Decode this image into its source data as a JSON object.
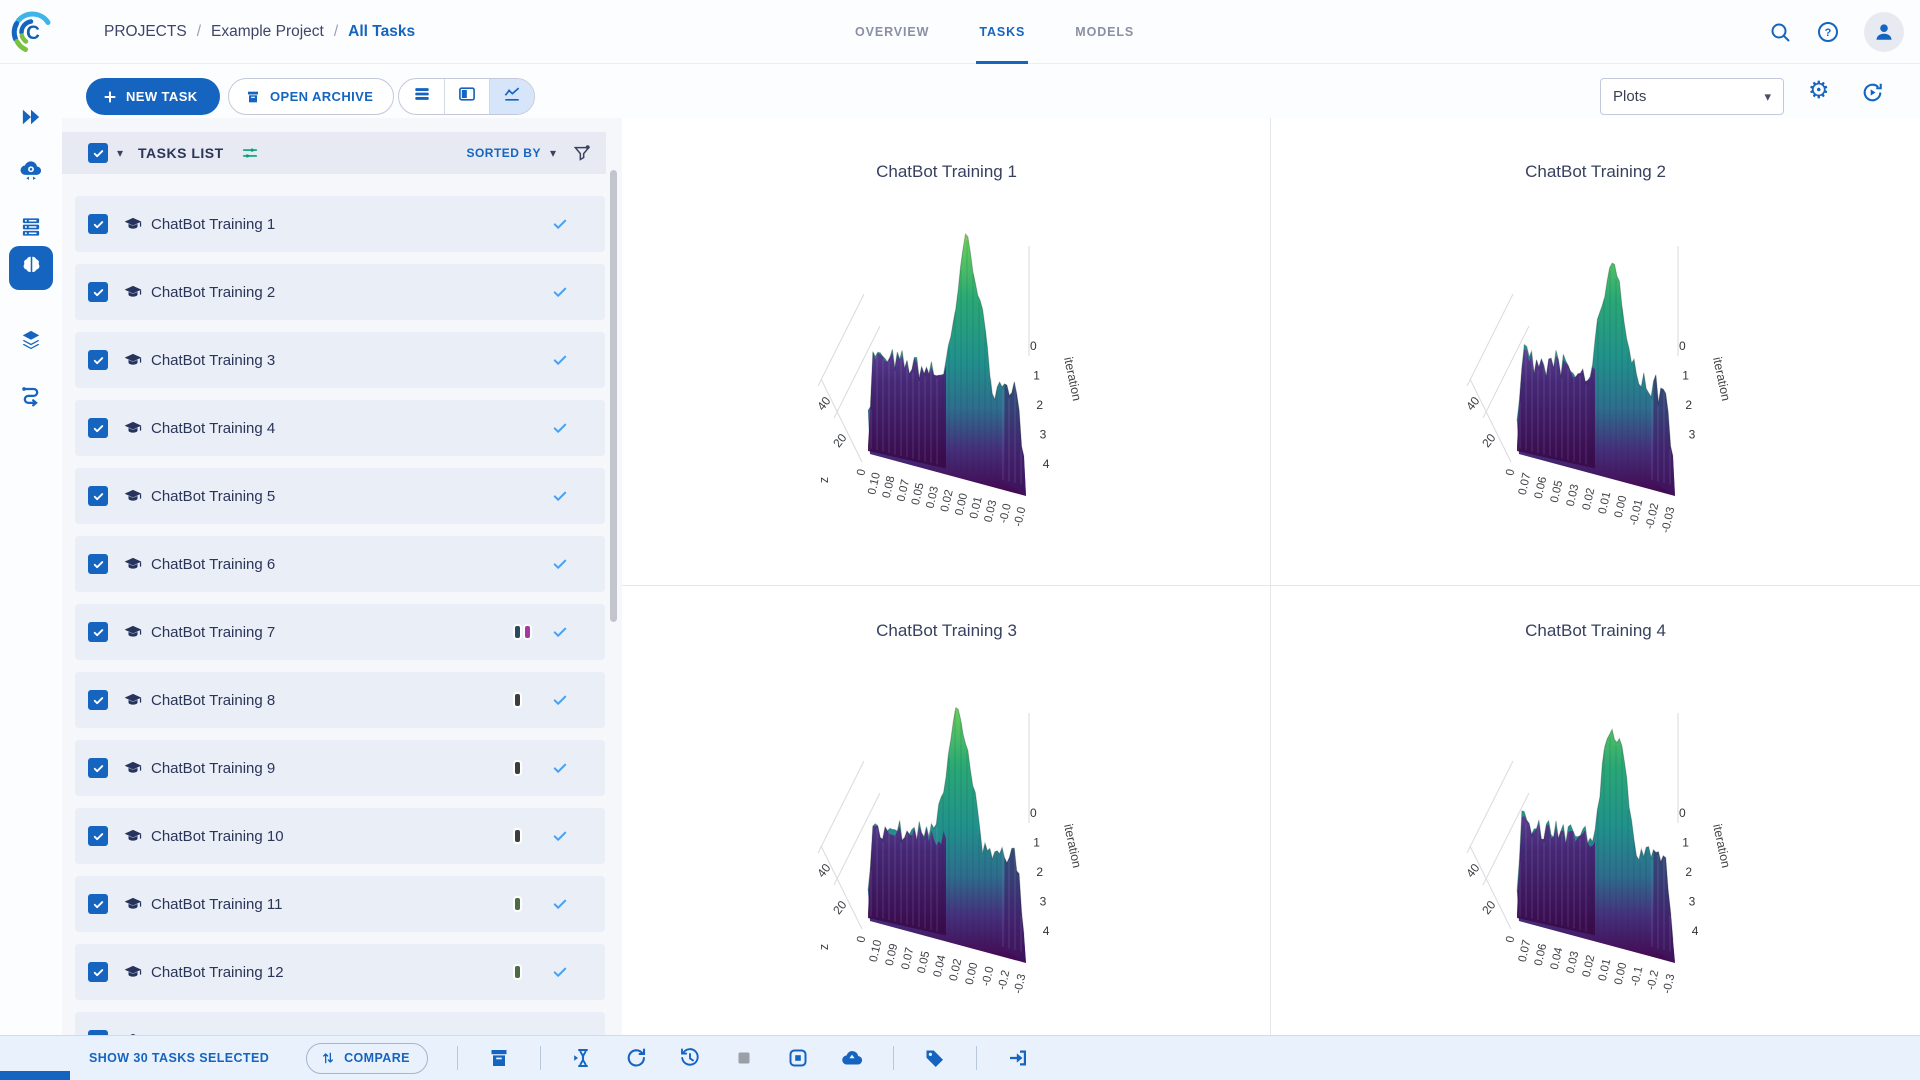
{
  "app": {
    "name": "ClearML",
    "logo_letter": "C"
  },
  "header": {
    "breadcrumb": {
      "items": [
        "PROJECTS",
        "Example Project",
        "All Tasks"
      ],
      "separator": "/"
    },
    "tabs": [
      {
        "label": "OVERVIEW",
        "active": false
      },
      {
        "label": "TASKS",
        "active": true
      },
      {
        "label": "MODELS",
        "active": false
      }
    ],
    "icons": [
      "search-icon",
      "help-icon",
      "user-avatar"
    ]
  },
  "toolbar": {
    "new_task": "NEW TASK",
    "open_archive": "OPEN ARCHIVE",
    "views": [
      {
        "name": "table-view",
        "active": false
      },
      {
        "name": "split-view",
        "active": false
      },
      {
        "name": "plots-view",
        "active": true
      }
    ],
    "display_dropdown": {
      "value": "Plots"
    },
    "icons": [
      "settings-gear-icon",
      "auto-refresh-icon"
    ]
  },
  "sidebar": {
    "items": [
      {
        "name": "launch",
        "active": false
      },
      {
        "name": "workers",
        "active": false
      },
      {
        "name": "queues",
        "active": false
      },
      {
        "name": "projects",
        "active": true
      },
      {
        "name": "datasets",
        "active": false
      },
      {
        "name": "pipelines",
        "active": false
      }
    ]
  },
  "tasks_panel": {
    "title": "TASKS LIST",
    "sorted_by": "SORTED BY",
    "select_all_checked": true,
    "tasks": [
      {
        "name": "ChatBot Training 1",
        "selected": true,
        "tags": []
      },
      {
        "name": "ChatBot Training 2",
        "selected": true,
        "tags": []
      },
      {
        "name": "ChatBot Training 3",
        "selected": true,
        "tags": []
      },
      {
        "name": "ChatBot Training 4",
        "selected": true,
        "tags": []
      },
      {
        "name": "ChatBot Training 5",
        "selected": true,
        "tags": []
      },
      {
        "name": "ChatBot Training 6",
        "selected": true,
        "tags": []
      },
      {
        "name": "ChatBot Training 7",
        "selected": true,
        "tags": [
          "#2c4a5e",
          "#a73aa2"
        ]
      },
      {
        "name": "ChatBot Training 8",
        "selected": true,
        "tags": [
          "#3d3d3d"
        ]
      },
      {
        "name": "ChatBot Training 9",
        "selected": true,
        "tags": [
          "#3d3d3d"
        ]
      },
      {
        "name": "ChatBot Training 10",
        "selected": true,
        "tags": [
          "#3d3d3d"
        ]
      },
      {
        "name": "ChatBot Training 11",
        "selected": true,
        "tags": [
          "#4c6b45"
        ]
      },
      {
        "name": "ChatBot Training 12",
        "selected": true,
        "tags": [
          "#4c6b45"
        ]
      }
    ],
    "has_partial_next_row": true
  },
  "footer": {
    "selected_text": "SHOW 30 TASKS SELECTED",
    "compare": "COMPARE",
    "action_groups": [
      [
        "archive"
      ],
      [
        "enqueue",
        "reset",
        "continue",
        "abort",
        "publish",
        "deploy"
      ],
      [
        "tags"
      ],
      [
        "move-to-project"
      ]
    ],
    "disabled_actions": [
      "abort"
    ]
  },
  "chart_data": [
    {
      "type": "surface",
      "title": "ChatBot Training 1",
      "x_ticks": [
        "0",
        "0.10",
        "0.08",
        "0.07",
        "0.05",
        "0.03",
        "0.02",
        "0.00",
        "0.01",
        "0.03",
        "-0.0",
        "-0.0"
      ],
      "y_label": "iteration",
      "y_ticks": [
        "0",
        "1",
        "2",
        "3",
        "4"
      ],
      "z_ticks": [
        "40",
        "20"
      ],
      "z_label": "z",
      "colorscale": "viridis",
      "legend": "none",
      "grid": true
    },
    {
      "type": "surface",
      "title": "ChatBot Training 2",
      "x_ticks": [
        "0",
        "0.07",
        "0.06",
        "0.05",
        "0.03",
        "0.02",
        "0.01",
        "0.00",
        "-0.01",
        "-0.02",
        "-0.03"
      ],
      "y_label": "iteration",
      "y_ticks": [
        "0",
        "1",
        "2",
        "3"
      ],
      "z_ticks": [
        "40",
        "20"
      ],
      "z_label": "",
      "colorscale": "viridis",
      "legend": "none",
      "grid": true
    },
    {
      "type": "surface",
      "title": "ChatBot Training 3",
      "x_ticks": [
        "0",
        "0.10",
        "0.09",
        "0.07",
        "0.05",
        "0.04",
        "0.02",
        "0.00",
        "-0.0",
        "-0.2",
        "-0.3"
      ],
      "y_label": "iteration",
      "y_ticks": [
        "0",
        "1",
        "2",
        "3",
        "4"
      ],
      "z_ticks": [
        "40",
        "20"
      ],
      "z_label": "z",
      "colorscale": "viridis",
      "legend": "none",
      "grid": true
    },
    {
      "type": "surface",
      "title": "ChatBot Training 4",
      "x_ticks": [
        "0",
        "0.07",
        "0.06",
        "0.04",
        "0.03",
        "0.02",
        "0.01",
        "0.00",
        "-0.1",
        "-0.2",
        "-0.3"
      ],
      "y_label": "iteration",
      "y_ticks": [
        "0",
        "1",
        "2",
        "3",
        "4"
      ],
      "z_ticks": [
        "40",
        "20"
      ],
      "z_label": "",
      "colorscale": "viridis",
      "legend": "none",
      "grid": true
    }
  ],
  "colors": {
    "primary": "#1565c0",
    "dark_text": "#2b3558",
    "row_bg": "#e9eef7",
    "panel_bg": "#f6f7fb",
    "header_bg": "#fcfdfe",
    "list_header_bg": "#e7eaf3",
    "footer_bg": "#e9f1fc",
    "row_check": "#4aa2f0",
    "mixer_teal": "#00a17a",
    "surface_top": "#b5e04c",
    "surface_mid": "#21918c",
    "surface_base": "#440b54",
    "logo_blue": "#1565c0",
    "logo_lightblue": "#3db5e8",
    "logo_green": "#7ac143"
  }
}
